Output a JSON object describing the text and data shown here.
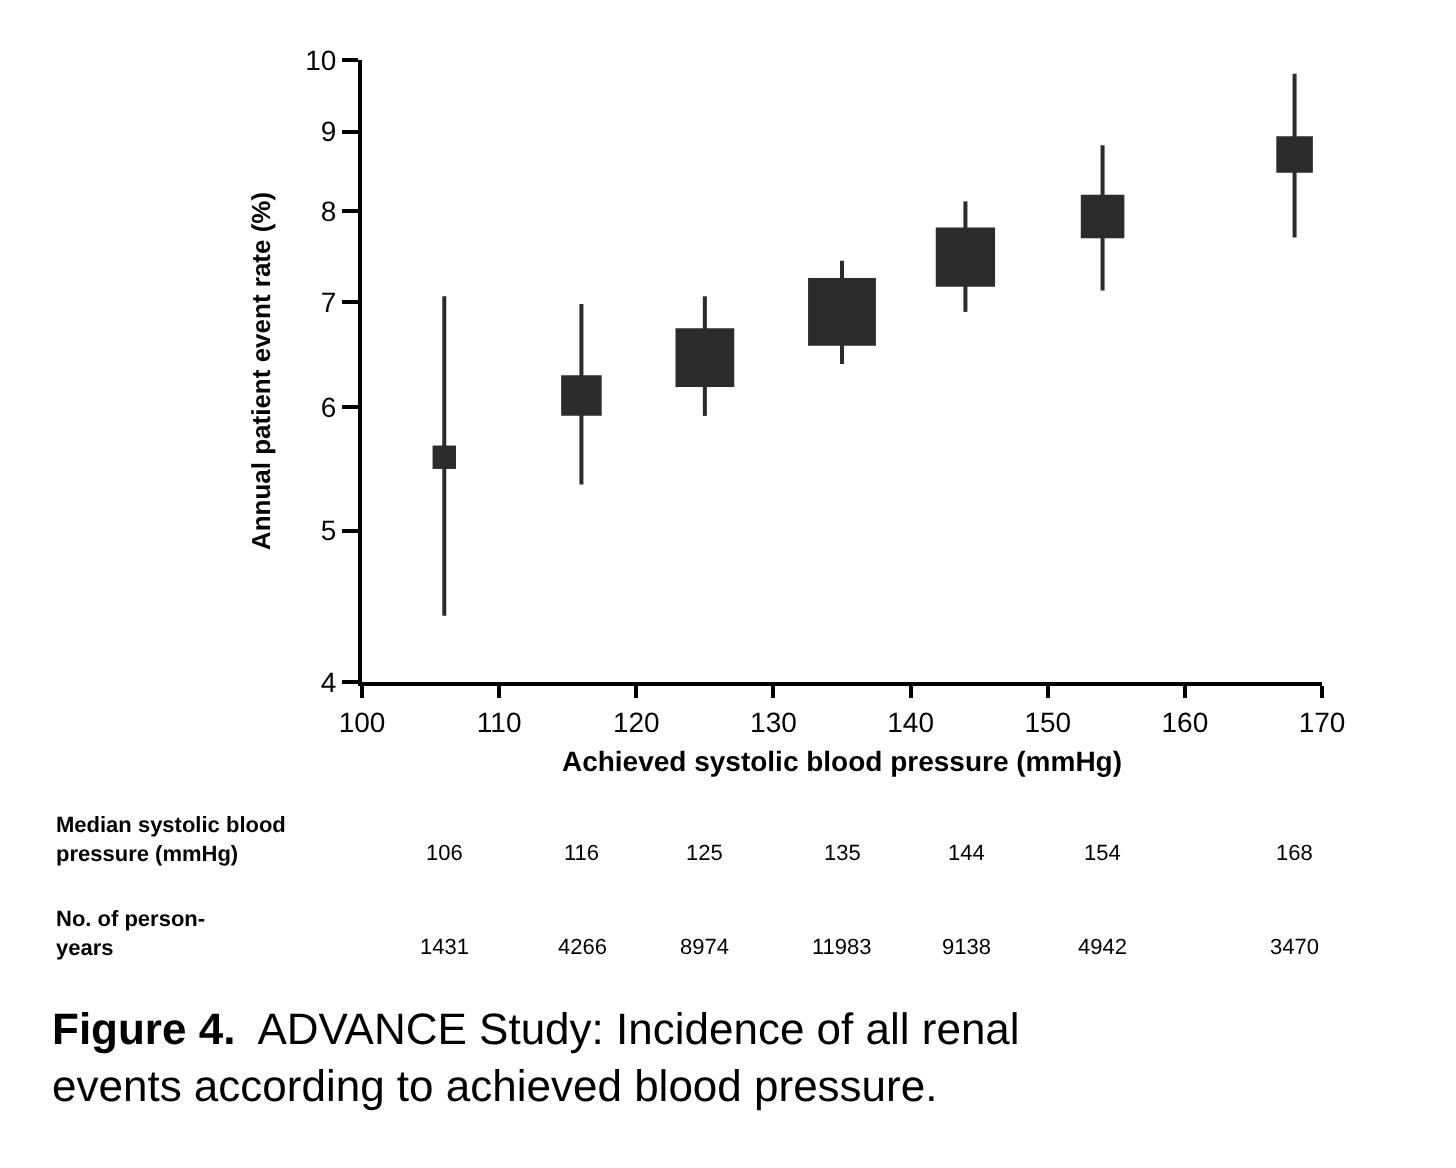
{
  "chart_data": {
    "type": "bubble",
    "title": "Figure 4.  ADVANCE Study: Incidence of all renal\nevents according to achieved blood pressure.",
    "xlabel": "Achieved systolic blood pressure (mmHg)",
    "ylabel": "Annual patient event rate (%)",
    "x": [
      106,
      116,
      125,
      135,
      144,
      154,
      168
    ],
    "values": [
      5.57,
      6.1,
      6.45,
      6.9,
      7.48,
      7.94,
      8.7
    ],
    "errors": [
      [
        4.41,
        7.06
      ],
      [
        5.35,
        6.98
      ],
      [
        5.92,
        7.06
      ],
      [
        6.39,
        7.44
      ],
      [
        6.9,
        8.12
      ],
      [
        7.12,
        8.82
      ],
      [
        7.7,
        9.8
      ]
    ],
    "sizes": [
      0.119,
      0.356,
      0.749,
      1,
      0.763,
      0.412,
      0.29
    ],
    "color": "#2b2b2b",
    "marker": "square",
    "log": true,
    "xlim": [
      100,
      170
    ],
    "xticks": [
      100,
      110,
      120,
      130,
      140,
      150,
      160,
      170
    ],
    "ylim": [
      4,
      10
    ],
    "yticks": [
      4,
      5,
      6,
      7,
      8,
      9,
      10
    ],
    "annotations": [
      "Median systolic blood\npressure (mmHg)",
      "106",
      "116",
      "125",
      "135",
      "144",
      "154",
      "168",
      "No. of person-\nyears",
      "1431",
      "4266",
      "8974",
      "11983",
      "9138",
      "4942",
      "3470"
    ]
  }
}
